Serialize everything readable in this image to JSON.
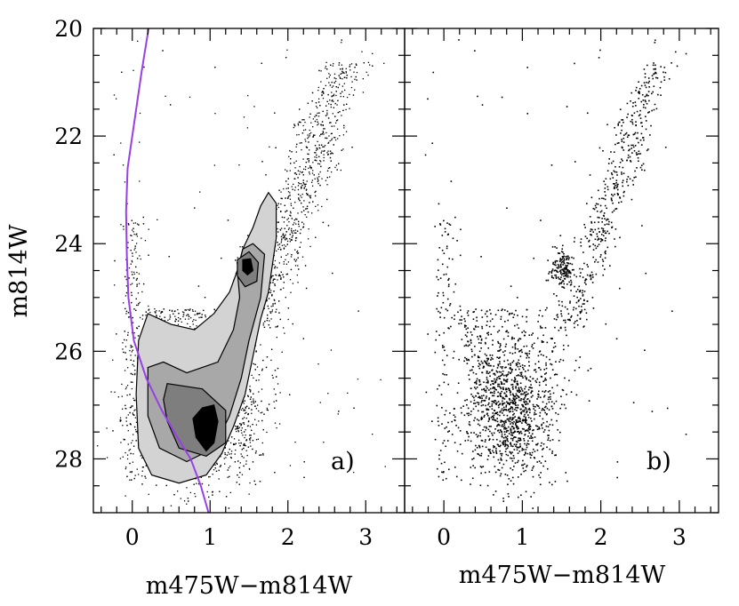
{
  "chart_data": [
    {
      "type": "scatter",
      "panel_label": "a)",
      "xlabel": "m475W−m814W",
      "ylabel": "m814W",
      "xlim": [
        -0.5,
        3.5
      ],
      "ylim": [
        29,
        20
      ],
      "y_inverted": true,
      "x_ticks": [
        0,
        1,
        2,
        3
      ],
      "y_ticks": [
        20,
        22,
        24,
        26,
        28
      ],
      "grid": false,
      "legend": "none",
      "point_color": "#000000",
      "contour_colors": [
        "#d3d3d3",
        "#a8a8a8",
        "#7e7e7e",
        "#000000"
      ],
      "contours": [
        {
          "level": 1,
          "points": [
            [
              1.75,
              23.05
            ],
            [
              1.85,
              23.25
            ],
            [
              1.85,
              23.9
            ],
            [
              1.75,
              24.9
            ],
            [
              1.65,
              25.4
            ],
            [
              1.55,
              26.1
            ],
            [
              1.45,
              26.8
            ],
            [
              1.3,
              27.4
            ],
            [
              1.15,
              27.9
            ],
            [
              0.95,
              28.3
            ],
            [
              0.6,
              28.45
            ],
            [
              0.25,
              28.3
            ],
            [
              0.08,
              27.8
            ],
            [
              0.05,
              26.8
            ],
            [
              0.08,
              25.8
            ],
            [
              0.2,
              25.3
            ],
            [
              0.5,
              25.5
            ],
            [
              0.8,
              25.6
            ],
            [
              1.05,
              25.3
            ],
            [
              1.25,
              24.9
            ],
            [
              1.35,
              24.5
            ],
            [
              1.42,
              24.1
            ],
            [
              1.55,
              23.7
            ],
            [
              1.65,
              23.3
            ]
          ]
        },
        {
          "level": 2,
          "points": [
            [
              1.55,
              24.0
            ],
            [
              1.7,
              24.2
            ],
            [
              1.65,
              25.0
            ],
            [
              1.5,
              25.8
            ],
            [
              1.4,
              26.5
            ],
            [
              1.25,
              27.2
            ],
            [
              1.05,
              27.8
            ],
            [
              0.7,
              28.05
            ],
            [
              0.35,
              27.8
            ],
            [
              0.2,
              27.2
            ],
            [
              0.2,
              26.3
            ],
            [
              0.4,
              26.2
            ],
            [
              0.7,
              26.4
            ],
            [
              1.1,
              26.2
            ],
            [
              1.3,
              25.6
            ],
            [
              1.38,
              25.0
            ],
            [
              1.35,
              24.5
            ],
            [
              1.42,
              24.1
            ]
          ]
        },
        {
          "level": 3,
          "points": [
            [
              0.45,
              26.6
            ],
            [
              0.9,
              26.7
            ],
            [
              1.2,
              27.1
            ],
            [
              1.2,
              27.7
            ],
            [
              0.95,
              27.95
            ],
            [
              0.6,
              27.8
            ],
            [
              0.45,
              27.3
            ],
            [
              0.4,
              26.9
            ]
          ]
        },
        {
          "level": 3,
          "points": [
            [
              1.35,
              24.3
            ],
            [
              1.5,
              24.15
            ],
            [
              1.62,
              24.35
            ],
            [
              1.6,
              24.7
            ],
            [
              1.45,
              24.8
            ],
            [
              1.35,
              24.6
            ]
          ]
        },
        {
          "level": 4,
          "points": [
            [
              0.9,
              27.05
            ],
            [
              1.05,
              27.0
            ],
            [
              1.1,
              27.3
            ],
            [
              1.05,
              27.7
            ],
            [
              0.95,
              27.85
            ],
            [
              0.82,
              27.6
            ],
            [
              0.78,
              27.25
            ]
          ]
        },
        {
          "level": 4,
          "points": [
            [
              1.42,
              24.3
            ],
            [
              1.52,
              24.28
            ],
            [
              1.55,
              24.5
            ],
            [
              1.48,
              24.58
            ],
            [
              1.42,
              24.5
            ]
          ]
        }
      ],
      "isochrone": {
        "color": "#9a3fe8",
        "x": [
          0.21,
          0.12,
          0.02,
          -0.06,
          -0.08,
          -0.07,
          -0.05,
          0.02,
          0.18,
          0.38,
          0.58,
          0.75,
          0.88,
          0.98
        ],
        "y": [
          20.0,
          20.8,
          21.8,
          22.6,
          23.4,
          24.2,
          25.0,
          25.8,
          26.5,
          27.1,
          27.6,
          28.0,
          28.5,
          29.0
        ]
      }
    },
    {
      "type": "scatter",
      "panel_label": "b)",
      "xlabel": "m475W−m814W",
      "ylabel": "",
      "xlim": [
        -0.5,
        3.5
      ],
      "ylim": [
        29,
        20
      ],
      "y_inverted": true,
      "x_ticks": [
        0,
        1,
        2,
        3
      ],
      "y_ticks": [
        20,
        22,
        24,
        26,
        28
      ],
      "grid": false,
      "legend": "none",
      "point_color": "#000000"
    }
  ]
}
